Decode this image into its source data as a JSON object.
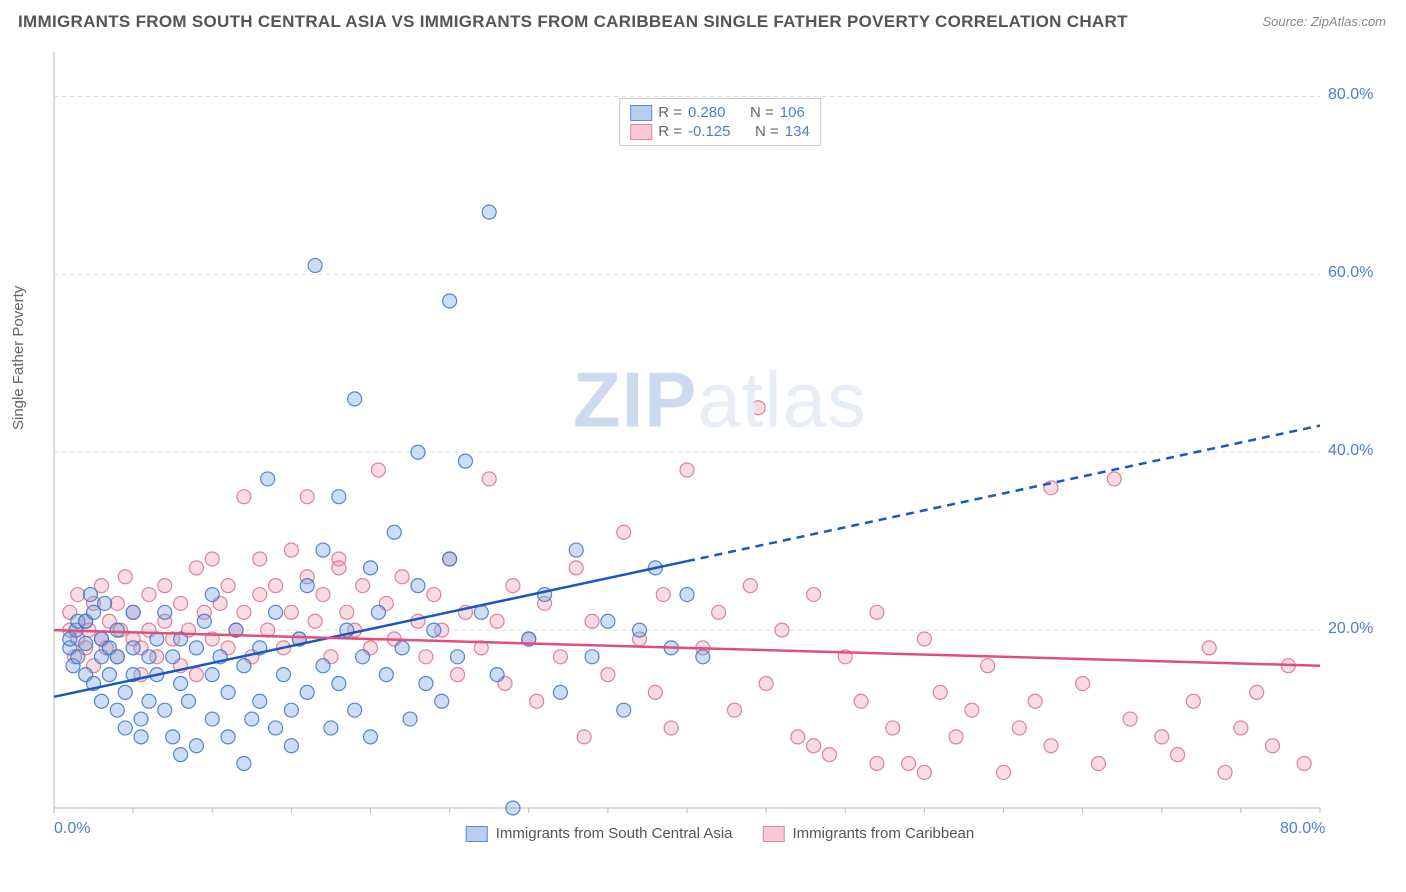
{
  "title": "IMMIGRANTS FROM SOUTH CENTRAL ASIA VS IMMIGRANTS FROM CARIBBEAN SINGLE FATHER POVERTY CORRELATION CHART",
  "source": "Source: ZipAtlas.com",
  "y_axis_label": "Single Father Poverty",
  "watermark_bold": "ZIP",
  "watermark_light": "atlas",
  "chart": {
    "type": "scatter",
    "background_color": "#ffffff",
    "grid_color": "#dddddd",
    "grid_dash": "4 4",
    "xlim": [
      0,
      80
    ],
    "ylim": [
      0,
      85
    ],
    "x_ticks": [
      0,
      80
    ],
    "x_tick_labels": [
      "0.0%",
      "80.0%"
    ],
    "y_ticks": [
      20,
      40,
      60,
      80
    ],
    "y_tick_labels": [
      "20.0%",
      "40.0%",
      "60.0%",
      "80.0%"
    ],
    "axis_label_color": "#4a7fd8",
    "axis_label_fontsize": 16,
    "title_fontsize": 17,
    "title_color": "#555555",
    "marker_radius": 7,
    "marker_fill_opacity": 0.35,
    "marker_stroke_width": 1.2,
    "series": [
      {
        "name": "Immigrants from South Central Asia",
        "label": "Immigrants from South Central Asia",
        "swatch_fill": "#b8cdef",
        "swatch_stroke": "#5a8cd8",
        "marker_fill": "#6fa0e0",
        "marker_stroke": "#3b72c9",
        "trend_color": "#1957c3",
        "trend_width": 2.5,
        "trend_solid_xmax": 40,
        "trend": {
          "y_at_x0": 12.5,
          "y_at_x80": 43
        },
        "R": "0.280",
        "N": "106",
        "points": [
          [
            1,
            18
          ],
          [
            1,
            19
          ],
          [
            1.2,
            16
          ],
          [
            1.4,
            20
          ],
          [
            1.5,
            17
          ],
          [
            1.5,
            21
          ],
          [
            2,
            15
          ],
          [
            2,
            18.5
          ],
          [
            2,
            21
          ],
          [
            2.3,
            24
          ],
          [
            2.5,
            14
          ],
          [
            2.5,
            22
          ],
          [
            3,
            12
          ],
          [
            3,
            17
          ],
          [
            3,
            19
          ],
          [
            3.2,
            23
          ],
          [
            3.5,
            18
          ],
          [
            3.5,
            15
          ],
          [
            4,
            11
          ],
          [
            4,
            20
          ],
          [
            4,
            17
          ],
          [
            4.5,
            9
          ],
          [
            4.5,
            13
          ],
          [
            5,
            18
          ],
          [
            5,
            15
          ],
          [
            5,
            22
          ],
          [
            5.5,
            10
          ],
          [
            5.5,
            8
          ],
          [
            6,
            17
          ],
          [
            6,
            12
          ],
          [
            6.5,
            19
          ],
          [
            6.5,
            15
          ],
          [
            7,
            11
          ],
          [
            7,
            22
          ],
          [
            7.5,
            8
          ],
          [
            7.5,
            17
          ],
          [
            8,
            14
          ],
          [
            8,
            19
          ],
          [
            8,
            6
          ],
          [
            8.5,
            12
          ],
          [
            9,
            18
          ],
          [
            9,
            7
          ],
          [
            9.5,
            21
          ],
          [
            10,
            15
          ],
          [
            10,
            10
          ],
          [
            10,
            24
          ],
          [
            10.5,
            17
          ],
          [
            11,
            8
          ],
          [
            11,
            13
          ],
          [
            11.5,
            20
          ],
          [
            12,
            16
          ],
          [
            12,
            5
          ],
          [
            12.5,
            10
          ],
          [
            13,
            18
          ],
          [
            13,
            12
          ],
          [
            13.5,
            37
          ],
          [
            14,
            9
          ],
          [
            14,
            22
          ],
          [
            14.5,
            15
          ],
          [
            15,
            11
          ],
          [
            15,
            7
          ],
          [
            15.5,
            19
          ],
          [
            16,
            13
          ],
          [
            16,
            25
          ],
          [
            16.5,
            61
          ],
          [
            17,
            16
          ],
          [
            17,
            29
          ],
          [
            17.5,
            9
          ],
          [
            18,
            14
          ],
          [
            18,
            35
          ],
          [
            18.5,
            20
          ],
          [
            19,
            46
          ],
          [
            19,
            11
          ],
          [
            19.5,
            17
          ],
          [
            20,
            27
          ],
          [
            20,
            8
          ],
          [
            20.5,
            22
          ],
          [
            21,
            15
          ],
          [
            21.5,
            31
          ],
          [
            22,
            18
          ],
          [
            22.5,
            10
          ],
          [
            23,
            40
          ],
          [
            23,
            25
          ],
          [
            23.5,
            14
          ],
          [
            24,
            20
          ],
          [
            24.5,
            12
          ],
          [
            25,
            57
          ],
          [
            25,
            28
          ],
          [
            25.5,
            17
          ],
          [
            26,
            39
          ],
          [
            27,
            22
          ],
          [
            27.5,
            67
          ],
          [
            28,
            15
          ],
          [
            29,
            0
          ],
          [
            30,
            19
          ],
          [
            31,
            24
          ],
          [
            32,
            13
          ],
          [
            33,
            29
          ],
          [
            34,
            17
          ],
          [
            35,
            21
          ],
          [
            36,
            11
          ],
          [
            37,
            20
          ],
          [
            38,
            27
          ],
          [
            39,
            18
          ],
          [
            40,
            24
          ],
          [
            41,
            17
          ]
        ]
      },
      {
        "name": "Immigrants from Caribbean",
        "label": "Immigrants from Caribbean",
        "swatch_fill": "#f7c9d4",
        "swatch_stroke": "#e08ba0",
        "marker_fill": "#ea9bb0",
        "marker_stroke": "#db6e8d",
        "trend_color": "#e04f7c",
        "trend_width": 2.5,
        "trend_solid_xmax": 80,
        "trend": {
          "y_at_x0": 20,
          "y_at_x80": 16
        },
        "R": "-0.125",
        "N": "134",
        "points": [
          [
            1,
            20
          ],
          [
            1,
            22
          ],
          [
            1.3,
            17
          ],
          [
            1.5,
            19
          ],
          [
            1.5,
            24
          ],
          [
            2,
            18
          ],
          [
            2,
            21
          ],
          [
            2.2,
            20
          ],
          [
            2.5,
            16
          ],
          [
            2.5,
            23
          ],
          [
            3,
            19
          ],
          [
            3,
            25
          ],
          [
            3.3,
            18
          ],
          [
            3.5,
            21
          ],
          [
            4,
            17
          ],
          [
            4,
            23
          ],
          [
            4.2,
            20
          ],
          [
            4.5,
            26
          ],
          [
            5,
            19
          ],
          [
            5,
            22
          ],
          [
            5.5,
            18
          ],
          [
            5.5,
            15
          ],
          [
            6,
            24
          ],
          [
            6,
            20
          ],
          [
            6.5,
            17
          ],
          [
            7,
            21
          ],
          [
            7,
            25
          ],
          [
            7.5,
            19
          ],
          [
            8,
            23
          ],
          [
            8,
            16
          ],
          [
            8.5,
            20
          ],
          [
            9,
            27
          ],
          [
            9,
            15
          ],
          [
            9.5,
            22
          ],
          [
            10,
            19
          ],
          [
            10,
            28
          ],
          [
            10.5,
            23
          ],
          [
            11,
            18
          ],
          [
            11,
            25
          ],
          [
            11.5,
            20
          ],
          [
            12,
            35
          ],
          [
            12,
            22
          ],
          [
            12.5,
            17
          ],
          [
            13,
            24
          ],
          [
            13,
            28
          ],
          [
            13.5,
            20
          ],
          [
            14,
            25
          ],
          [
            14.5,
            18
          ],
          [
            15,
            22
          ],
          [
            15,
            29
          ],
          [
            15.5,
            19
          ],
          [
            16,
            26
          ],
          [
            16,
            35
          ],
          [
            16.5,
            21
          ],
          [
            17,
            24
          ],
          [
            17.5,
            17
          ],
          [
            18,
            28
          ],
          [
            18,
            27
          ],
          [
            18.5,
            22
          ],
          [
            19,
            20
          ],
          [
            19.5,
            25
          ],
          [
            20,
            18
          ],
          [
            20.5,
            38
          ],
          [
            21,
            23
          ],
          [
            21.5,
            19
          ],
          [
            22,
            26
          ],
          [
            23,
            21
          ],
          [
            23.5,
            17
          ],
          [
            24,
            24
          ],
          [
            24.5,
            20
          ],
          [
            25,
            28
          ],
          [
            25.5,
            15
          ],
          [
            26,
            22
          ],
          [
            27,
            18
          ],
          [
            27.5,
            37
          ],
          [
            28,
            21
          ],
          [
            28.5,
            14
          ],
          [
            29,
            25
          ],
          [
            30,
            19
          ],
          [
            30.5,
            12
          ],
          [
            31,
            23
          ],
          [
            32,
            17
          ],
          [
            33,
            27
          ],
          [
            33.5,
            8
          ],
          [
            34,
            21
          ],
          [
            35,
            15
          ],
          [
            36,
            31
          ],
          [
            37,
            19
          ],
          [
            38,
            13
          ],
          [
            38.5,
            24
          ],
          [
            39,
            9
          ],
          [
            40,
            38
          ],
          [
            41,
            18
          ],
          [
            42,
            22
          ],
          [
            43,
            11
          ],
          [
            44,
            25
          ],
          [
            44.5,
            45
          ],
          [
            45,
            14
          ],
          [
            46,
            20
          ],
          [
            47,
            8
          ],
          [
            48,
            24
          ],
          [
            49,
            6
          ],
          [
            50,
            17
          ],
          [
            51,
            12
          ],
          [
            52,
            22
          ],
          [
            53,
            9
          ],
          [
            54,
            5
          ],
          [
            55,
            19
          ],
          [
            56,
            13
          ],
          [
            57,
            8
          ],
          [
            58,
            11
          ],
          [
            59,
            16
          ],
          [
            60,
            4
          ],
          [
            61,
            9
          ],
          [
            62,
            12
          ],
          [
            63,
            7
          ],
          [
            65,
            14
          ],
          [
            66,
            5
          ],
          [
            67,
            37
          ],
          [
            68,
            10
          ],
          [
            70,
            8
          ],
          [
            71,
            6
          ],
          [
            72,
            12
          ],
          [
            73,
            18
          ],
          [
            74,
            4
          ],
          [
            75,
            9
          ],
          [
            76,
            13
          ],
          [
            77,
            7
          ],
          [
            78,
            16
          ],
          [
            79,
            5
          ],
          [
            63,
            36
          ],
          [
            55,
            4
          ],
          [
            48,
            7
          ],
          [
            52,
            5
          ]
        ]
      }
    ]
  },
  "legend_top": {
    "r_label": "R =",
    "n_label": "N ="
  }
}
